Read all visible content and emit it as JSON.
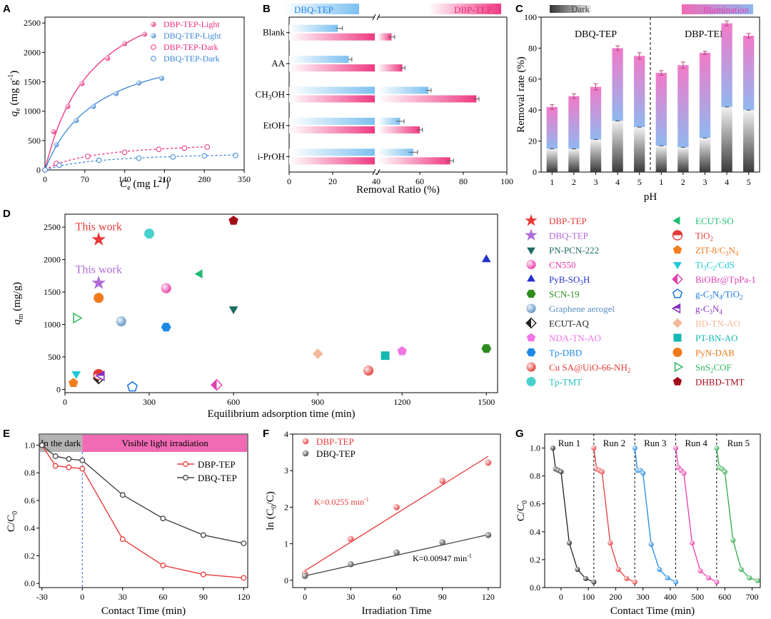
{
  "panel_letters": {
    "A": "A",
    "B": "B",
    "C": "C",
    "D": "D",
    "E": "E",
    "F": "F",
    "G": "G"
  },
  "colors": {
    "pink": "#ec2f7f",
    "blue": "#3a86d8",
    "red": "#e83a3a",
    "black": "#333333",
    "bandPink": "#f06ab4"
  },
  "chart_data": [
    {
      "id": "A",
      "type": "scatter",
      "xlabel_italic": "C",
      "xlabel_sub": "e",
      "xlabel_rest": " (mg L",
      "xlabel_sup": "-1",
      "xlabel_end": ")",
      "ylabel_italic": "q",
      "ylabel_sub": "e",
      "ylabel_rest": " (mg g",
      "ylabel_sup": "-1",
      "ylabel_end": ")",
      "xlim": [
        0,
        350
      ],
      "ylim": [
        0,
        2600
      ],
      "xticks": [
        0,
        70,
        140,
        210,
        280,
        350
      ],
      "yticks": [
        0,
        500,
        1000,
        1500,
        2000,
        2500
      ],
      "series": [
        {
          "name": "DBP-TEP-Light",
          "filled": true,
          "color": "#ec2f7f",
          "fitQm": 3450,
          "fitK": 0.0117,
          "dashed": false,
          "x": [
            0,
            15,
            40,
            65,
            110,
            140,
            175
          ],
          "y": [
            0,
            650,
            1080,
            1470,
            1900,
            2150,
            2310
          ]
        },
        {
          "name": "DBQ-TEP-Light",
          "filled": true,
          "color": "#3a86d8",
          "fitQm": 2300,
          "fitK": 0.0108,
          "dashed": false,
          "x": [
            0,
            20,
            55,
            85,
            125,
            165,
            205
          ],
          "y": [
            0,
            430,
            840,
            1080,
            1300,
            1480,
            1560
          ]
        },
        {
          "name": "DBP-TEP-Dark",
          "filled": false,
          "color": "#ec2f7f",
          "fitQm": 520,
          "fitK": 0.0108,
          "dashed": true,
          "x": [
            0,
            20,
            75,
            140,
            200,
            245,
            285
          ],
          "y": [
            0,
            110,
            230,
            300,
            350,
            370,
            390
          ]
        },
        {
          "name": "DBQ-TEP-Dark",
          "filled": false,
          "color": "#3a86d8",
          "fitQm": 330,
          "fitK": 0.0098,
          "dashed": true,
          "x": [
            0,
            25,
            95,
            165,
            225,
            280,
            335
          ],
          "y": [
            0,
            80,
            165,
            200,
            220,
            240,
            245
          ]
        }
      ]
    },
    {
      "id": "B",
      "type": "bar",
      "xlabel": "Removal Ratio (%)",
      "legend": [
        "DBQ-TEP",
        "DBP-TEP"
      ],
      "categories": [
        "Blank",
        "AA",
        "CH3OH",
        "EtOH",
        "i-PrOH"
      ],
      "cat_main": [
        "Blank",
        "AA",
        "CH",
        "EtOH",
        "i-PrOH"
      ],
      "cat_sub": [
        "",
        "",
        "3",
        "",
        ""
      ],
      "cat_tail": [
        "",
        "",
        "OH",
        "",
        ""
      ],
      "xlim": [
        0,
        100
      ],
      "xticks": [
        0,
        20,
        40,
        60,
        80,
        100
      ],
      "axis_break_at": 40,
      "series": [
        {
          "name": "DBQ-TEP",
          "values": [
            23,
            28,
            64,
            51,
            57
          ],
          "errors": [
            1.5,
            0.8,
            1.2,
            1.8,
            2
          ]
        },
        {
          "name": "DBP-TEP",
          "values": [
            47,
            52,
            86,
            60,
            74
          ],
          "errors": [
            1.5,
            1.2,
            1.2,
            1.2,
            1.5
          ]
        }
      ]
    },
    {
      "id": "C",
      "type": "bar",
      "xlabel": "pH",
      "ylabel": "Removal rate (%)",
      "legend": [
        "Dark",
        "Illumination"
      ],
      "groups": [
        "DBQ-TEP",
        "DBP-TEP"
      ],
      "categories": [
        "1",
        "2",
        "3",
        "4",
        "5",
        "1",
        "2",
        "3",
        "4",
        "5"
      ],
      "ylim": [
        0,
        100
      ],
      "yticks": [
        0,
        20,
        40,
        60,
        80,
        100
      ],
      "dark": [
        15,
        15,
        21,
        33,
        29,
        17,
        16,
        22,
        42,
        40
      ],
      "illumination": [
        42,
        49,
        55,
        80,
        75,
        64,
        69,
        77,
        96,
        88
      ],
      "errors": [
        1.5,
        1.5,
        2,
        1.5,
        2,
        1.5,
        2,
        1,
        1.5,
        1.5
      ]
    },
    {
      "id": "D",
      "type": "scatter",
      "xlabel": "Equilibrium adsorption time (min)",
      "ylabel_italic": "q",
      "ylabel_sub": "m",
      "ylabel_rest": " (mg/g)",
      "xlim": [
        0,
        1540
      ],
      "ylim": [
        -50,
        2700
      ],
      "xticks": [
        0,
        300,
        600,
        900,
        1200,
        1500
      ],
      "yticks": [
        0,
        500,
        1000,
        1500,
        2000,
        2500
      ],
      "annotations": [
        {
          "text": "This work",
          "x": 120,
          "y": 2450,
          "color": "#e83a3a"
        },
        {
          "text": "This work",
          "x": 120,
          "y": 1790,
          "color": "#b06ad8"
        }
      ],
      "points": [
        {
          "name": "DBP-TEP",
          "nm": "DBP-TEP",
          "sub": "",
          "tail": "",
          "x": 120,
          "y": 2310,
          "shape": "star",
          "color": "#e83a3a",
          "tc": "#e83a3a"
        },
        {
          "name": "DBQ-TEP",
          "nm": "DBQ-TEP",
          "sub": "",
          "tail": "",
          "x": 120,
          "y": 1640,
          "shape": "star",
          "color": "#b06ad8",
          "tc": "#b06ad8"
        },
        {
          "name": "PN-PCN-222",
          "nm": "PN-PCN-222",
          "sub": "",
          "tail": "",
          "x": 600,
          "y": 1240,
          "shape": "tri-down",
          "color": "#1e6b64",
          "tc": "#1e6b64"
        },
        {
          "name": "CN550",
          "nm": "CN550",
          "sub": "",
          "tail": "",
          "x": 360,
          "y": 1560,
          "shape": "sphere",
          "color": "#ec3aa8",
          "tc": "#ec3aa8"
        },
        {
          "name": "PyB-SO3H",
          "nm": "PyB-SO",
          "sub": "3",
          "tail": "H",
          "x": 1500,
          "y": 2000,
          "shape": "tri-up",
          "color": "#2233cc",
          "tc": "#2233cc"
        },
        {
          "name": "SCN-19",
          "nm": "SCN-19",
          "sub": "",
          "tail": "",
          "x": 1500,
          "y": 630,
          "shape": "hex",
          "color": "#2e8b1e",
          "tc": "#2e8b1e"
        },
        {
          "name": "Graphene aerogel",
          "nm": "Graphene aerogel",
          "sub": "",
          "tail": "",
          "x": 200,
          "y": 1050,
          "shape": "sphere",
          "color": "#5b8fc4",
          "tc": "#5b8fc4"
        },
        {
          "name": "ECUT-AQ",
          "nm": "ECUT-AQ",
          "sub": "",
          "tail": "",
          "x": 120,
          "y": 170,
          "shape": "diamond-half",
          "color": "#222222",
          "tc": "#222222"
        },
        {
          "name": "NDA-TN-AO",
          "nm": "NDA-TN-AO",
          "sub": "",
          "tail": "",
          "x": 1200,
          "y": 590,
          "shape": "pent",
          "color": "#f077e6",
          "tc": "#f077e6"
        },
        {
          "name": "Tp-DBD",
          "nm": "Tp-DBD",
          "sub": "",
          "tail": "",
          "x": 360,
          "y": 960,
          "shape": "hex",
          "color": "#1e88e5",
          "tc": "#1e88e5"
        },
        {
          "name": "Cu SA@UiO-66-NH2",
          "nm": "Cu SA@UiO-66-NH",
          "sub": "2",
          "tail": "",
          "x": 1080,
          "y": 290,
          "shape": "sphere",
          "color": "#e53935",
          "tc": "#e53935"
        },
        {
          "name": "Tp-TMT",
          "nm": "Tp-TMT",
          "sub": "",
          "tail": "",
          "x": 300,
          "y": 2400,
          "shape": "circle",
          "color": "#48d0cc",
          "tc": "#2bc0c0"
        },
        {
          "name": "ECUT-SO",
          "nm": "ECUT-SO",
          "sub": "",
          "tail": "",
          "x": 480,
          "y": 1780,
          "shape": "tri-left",
          "color": "#1ebd73",
          "tc": "#1ebd73"
        },
        {
          "name": "TiO2",
          "nm": "TiO",
          "sub": "2",
          "tail": "",
          "x": 120,
          "y": 230,
          "shape": "half-circle",
          "color": "#e53935",
          "tc": "#e53935"
        },
        {
          "name": "ZIT-8/C3N4",
          "nm": "ZIT-8/C",
          "sub": "3",
          "tail": "N",
          "sub2": "4",
          "x": 30,
          "y": 100,
          "shape": "pent",
          "color": "#f57c1f",
          "tc": "#f57c1f"
        },
        {
          "name": "Ti3C2/CdS",
          "nm": "Ti",
          "sub": "3",
          "tail": "C",
          "sub2": "2",
          "tail2": "/CdS",
          "x": 40,
          "y": 240,
          "shape": "tri-down",
          "color": "#1ec8d8",
          "tc": "#1ec8d8"
        },
        {
          "name": "BiOBr@TpPa-1",
          "nm": "BiOBr@TpPa-1",
          "sub": "",
          "tail": "",
          "x": 540,
          "y": 70,
          "shape": "diamond-half",
          "color": "#e040b0",
          "tc": "#e040b0"
        },
        {
          "name": "g-C3N4/TiO2",
          "nm": "g-C",
          "sub": "3",
          "tail": "N",
          "sub2": "4",
          "tail2": "/TiO",
          "sub3": "2",
          "x": 240,
          "y": 40,
          "shape": "pent-open",
          "color": "#1e7be5",
          "tc": "#1e7be5"
        },
        {
          "name": "g-C3N4",
          "nm": "g-C",
          "sub": "3",
          "tail": "N",
          "sub2": "4",
          "x": 130,
          "y": 210,
          "shape": "tri-left-half",
          "color": "#8a2fc0",
          "tc": "#8a2fc0"
        },
        {
          "name": "BD-TN-AO",
          "nm": "BD-TN-AO",
          "sub": "",
          "tail": "",
          "x": 900,
          "y": 550,
          "shape": "diamond",
          "color": "#f5b89a",
          "tc": "#f5b89a"
        },
        {
          "name": "PT-BN-AO",
          "nm": "PT-BN-AO",
          "sub": "",
          "tail": "",
          "x": 1140,
          "y": 520,
          "shape": "square",
          "color": "#14b8b0",
          "tc": "#14b8b0"
        },
        {
          "name": "PyN-DAB",
          "nm": "PyN-DAB",
          "sub": "",
          "tail": "",
          "x": 120,
          "y": 1410,
          "shape": "circle",
          "color": "#f07a1a",
          "tc": "#f07a1a"
        },
        {
          "name": "SnS2COF",
          "nm": "SnS",
          "sub": "2",
          "tail": "COF",
          "x": 40,
          "y": 1100,
          "shape": "tri-right-open",
          "color": "#2eb85c",
          "tc": "#2eb85c"
        },
        {
          "name": "DHBD-TMT",
          "nm": "DHBD-TMT",
          "sub": "",
          "tail": "",
          "x": 600,
          "y": 2600,
          "shape": "pent",
          "color": "#a30d1a",
          "tc": "#a30d1a"
        }
      ]
    },
    {
      "id": "E",
      "type": "line",
      "xlabel": "Contact Time (min)",
      "ylabel_main": "C/C",
      "ylabel_sub": "0",
      "band_dark": "In the dark",
      "band_light": "Visible light irradiation",
      "xlim": [
        -32,
        123
      ],
      "ylim": [
        -0.03,
        1.08
      ],
      "xticks": [
        -30,
        0,
        30,
        60,
        90,
        120
      ],
      "yticks": [
        0.0,
        0.2,
        0.4,
        0.6,
        0.8,
        1.0
      ],
      "ytick_labels": [
        "0.0",
        "0.2",
        "0.4",
        "0.6",
        "0.8",
        "1.0"
      ],
      "series": [
        {
          "name": "DBP-TEP",
          "color": "#e83a3a",
          "x": [
            -30,
            -20,
            -10,
            0,
            30,
            60,
            90,
            120
          ],
          "y": [
            1.0,
            0.85,
            0.84,
            0.83,
            0.32,
            0.13,
            0.065,
            0.04
          ]
        },
        {
          "name": "DBQ-TEP",
          "color": "#444444",
          "x": [
            -30,
            -20,
            -10,
            0,
            30,
            60,
            90,
            120
          ],
          "y": [
            1.0,
            0.92,
            0.9,
            0.89,
            0.64,
            0.47,
            0.35,
            0.29
          ]
        }
      ]
    },
    {
      "id": "F",
      "type": "scatter",
      "xlabel": "Irradiation Time",
      "ylabel": "ln (C0/C)",
      "ylabel_pre": "ln (C",
      "ylabel_sub": "0",
      "ylabel_post": "/C)",
      "xlim": [
        -8,
        128
      ],
      "ylim": [
        -0.2,
        4
      ],
      "xticks": [
        0,
        30,
        60,
        90,
        120
      ],
      "yticks": [
        0,
        1,
        2,
        3,
        4
      ],
      "series": [
        {
          "name": "DBP-TEP",
          "color": "#e83a3a",
          "k": "K=0.0255 min",
          "kpow": "-1",
          "fit": [
            0.26,
            0.0261
          ],
          "x": [
            0,
            30,
            60,
            90,
            120
          ],
          "y": [
            0.18,
            1.13,
            2.0,
            2.72,
            3.22
          ]
        },
        {
          "name": "DBQ-TEP",
          "color": "#444444",
          "k": "K=0.00947 min",
          "kpow": "-1",
          "fit": [
            0.12,
            0.0094
          ],
          "x": [
            0,
            30,
            60,
            90,
            120
          ],
          "y": [
            0.12,
            0.44,
            0.76,
            1.04,
            1.24
          ]
        }
      ]
    },
    {
      "id": "G",
      "type": "line",
      "xlabel": "Contact Time (min)",
      "ylabel_main": "C/C",
      "ylabel_sub": "0",
      "xlim": [
        -60,
        730
      ],
      "ylim": [
        0,
        1.1
      ],
      "xticks": [
        0,
        100,
        200,
        300,
        400,
        500,
        600,
        700
      ],
      "yticks": [
        0.0,
        0.2,
        0.4,
        0.6,
        0.8,
        1.0
      ],
      "ytick_labels": [
        "0.0",
        "0.2",
        "0.4",
        "0.6",
        "0.8",
        "1.0"
      ],
      "run_boundaries": [
        120,
        270,
        420,
        570
      ],
      "runs": [
        {
          "label": "Run 1",
          "color": "#222222",
          "x": [
            -30,
            -20,
            -10,
            0,
            30,
            60,
            90,
            120
          ],
          "y": [
            1.0,
            0.85,
            0.84,
            0.83,
            0.32,
            0.13,
            0.065,
            0.04
          ]
        },
        {
          "label": "Run 2",
          "color": "#e83a3a",
          "x": [
            120,
            130,
            140,
            150,
            180,
            210,
            240,
            270
          ],
          "y": [
            1.0,
            0.85,
            0.84,
            0.83,
            0.32,
            0.13,
            0.065,
            0.04
          ]
        },
        {
          "label": "Run 3",
          "color": "#1e88e5",
          "x": [
            270,
            280,
            290,
            300,
            330,
            360,
            390,
            420
          ],
          "y": [
            1.0,
            0.84,
            0.84,
            0.82,
            0.31,
            0.13,
            0.07,
            0.04
          ]
        },
        {
          "label": "Run 4",
          "color": "#ec3aa8",
          "x": [
            420,
            430,
            440,
            450,
            480,
            510,
            540,
            570
          ],
          "y": [
            1.0,
            0.86,
            0.84,
            0.82,
            0.32,
            0.12,
            0.07,
            0.04
          ]
        },
        {
          "label": "Run 5",
          "color": "#2eaa4a",
          "x": [
            570,
            580,
            590,
            600,
            630,
            660,
            690,
            720
          ],
          "y": [
            1.0,
            0.86,
            0.85,
            0.83,
            0.34,
            0.13,
            0.07,
            0.05
          ]
        }
      ]
    }
  ]
}
